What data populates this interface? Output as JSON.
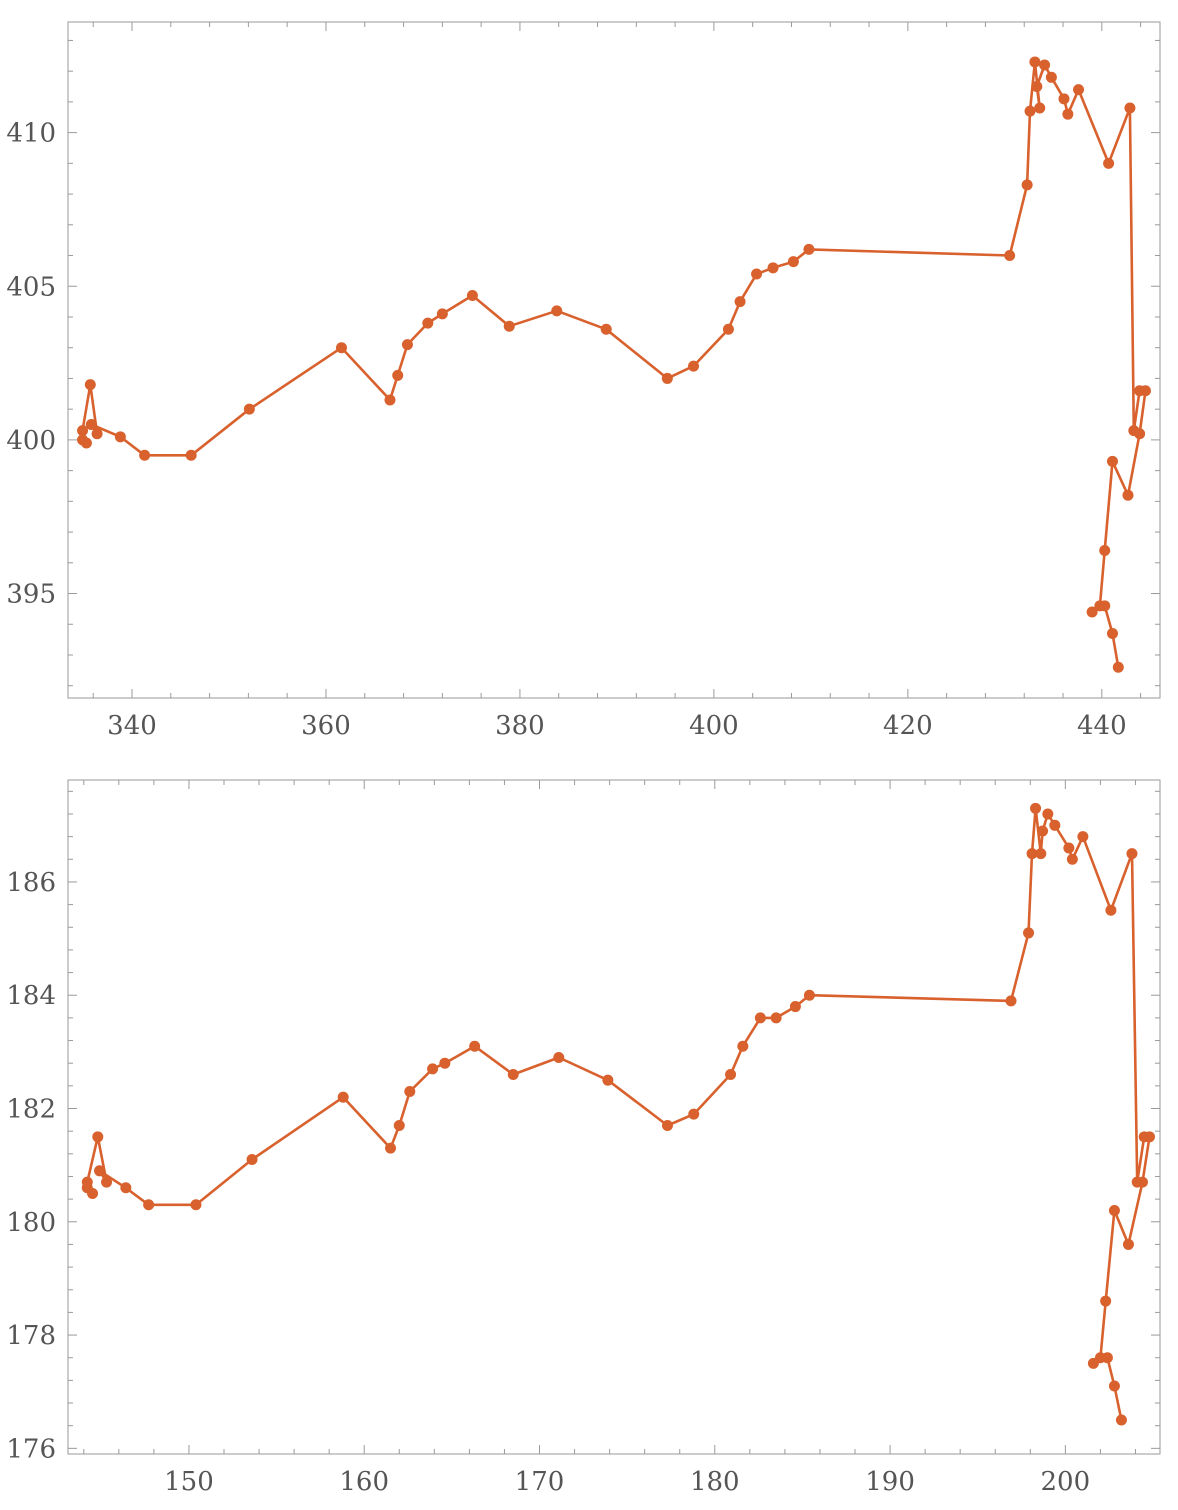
{
  "chart_data": [
    {
      "type": "line",
      "title": "",
      "xlabel": "",
      "ylabel": "",
      "color": "#d8612d",
      "xlim": [
        333.4,
        446.0
      ],
      "ylim": [
        391.6,
        413.6
      ],
      "xticks": [
        340,
        360,
        380,
        400,
        420,
        440
      ],
      "yticks": [
        395,
        400,
        405,
        410
      ],
      "xticks_major_labels": [
        "340",
        "360",
        "380",
        "400",
        "420",
        "440"
      ],
      "yticks_major_labels": [
        "395",
        "400",
        "405",
        "410"
      ],
      "x": [
        334.9,
        335.3,
        334.9,
        335.7,
        336.4,
        335.8,
        338.8,
        341.3,
        346.1,
        352.1,
        361.6,
        366.6,
        367.4,
        368.4,
        370.5,
        372.0,
        375.1,
        378.9,
        383.8,
        388.9,
        395.2,
        397.9,
        401.5,
        402.7,
        404.4,
        406.1,
        408.2,
        409.8,
        430.5,
        432.3,
        432.6,
        433.1,
        433.6,
        433.3,
        434.1,
        434.8,
        436.1,
        436.5,
        437.6,
        440.7,
        442.9,
        443.3,
        443.9,
        444.5,
        443.9,
        442.7,
        441.1,
        440.3,
        439.8,
        439.0,
        440.3,
        441.1,
        441.7
      ],
      "y": [
        400.0,
        399.9,
        400.3,
        401.8,
        400.2,
        400.5,
        400.1,
        399.5,
        399.5,
        401.0,
        403.0,
        401.3,
        402.1,
        403.1,
        403.8,
        404.1,
        404.7,
        403.7,
        404.2,
        403.6,
        402.0,
        402.4,
        403.6,
        404.5,
        405.4,
        405.6,
        405.8,
        406.2,
        406.0,
        408.3,
        410.7,
        412.3,
        410.8,
        411.5,
        412.2,
        411.8,
        411.1,
        410.6,
        411.4,
        409.0,
        410.8,
        400.3,
        401.6,
        401.6,
        400.2,
        398.2,
        399.3,
        396.4,
        394.6,
        394.4,
        394.6,
        393.7,
        392.6
      ]
    },
    {
      "type": "line",
      "title": "",
      "xlabel": "",
      "ylabel": "",
      "color": "#d8612d",
      "xlim": [
        143.1,
        205.4
      ],
      "ylim": [
        175.9,
        187.8
      ],
      "xticks": [
        150,
        160,
        170,
        180,
        190,
        200
      ],
      "yticks": [
        176,
        178,
        180,
        182,
        184,
        186
      ],
      "xticks_major_labels": [
        "150",
        "160",
        "170",
        "180",
        "190",
        "200"
      ],
      "yticks_major_labels": [
        "176",
        "178",
        "180",
        "182",
        "184",
        "186"
      ],
      "x": [
        144.2,
        144.5,
        144.2,
        144.8,
        145.3,
        144.9,
        146.4,
        147.7,
        150.4,
        153.6,
        158.8,
        161.5,
        162.0,
        162.6,
        163.9,
        164.6,
        166.3,
        168.5,
        171.1,
        173.9,
        177.3,
        178.8,
        180.9,
        181.6,
        182.6,
        183.5,
        184.6,
        185.4,
        196.9,
        197.9,
        198.1,
        198.3,
        198.6,
        198.7,
        199.0,
        199.4,
        200.2,
        200.4,
        201.0,
        202.6,
        203.8,
        204.1,
        204.5,
        204.8,
        204.4,
        203.6,
        202.8,
        202.3,
        202.0,
        201.6,
        202.4,
        202.8,
        203.2
      ],
      "y": [
        180.6,
        180.5,
        180.7,
        181.5,
        180.7,
        180.9,
        180.6,
        180.3,
        180.3,
        181.1,
        182.2,
        181.3,
        181.7,
        182.3,
        182.7,
        182.8,
        183.1,
        182.6,
        182.9,
        182.5,
        181.7,
        181.9,
        182.6,
        183.1,
        183.6,
        183.6,
        183.8,
        184.0,
        183.9,
        185.1,
        186.5,
        187.3,
        186.5,
        186.9,
        187.2,
        187.0,
        186.6,
        186.4,
        186.8,
        185.5,
        186.5,
        180.7,
        181.5,
        181.5,
        180.7,
        179.6,
        180.2,
        178.6,
        177.6,
        177.5,
        177.6,
        177.1,
        176.5
      ]
    }
  ]
}
